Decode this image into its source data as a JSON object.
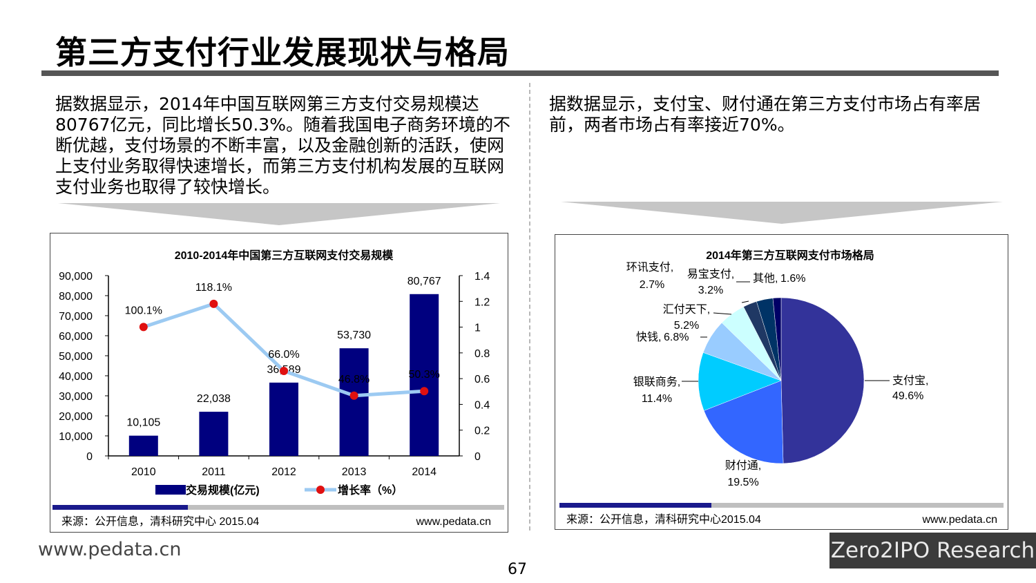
{
  "page": {
    "title": "第三方支付行业发展现状与格局",
    "left_text": "据数据显示，2014年中国互联网第三方支付交易规模达80767亿元，同比增长50.3%。随着我国电子商务环境的不断优越，支付场景的不断丰富，以及金融创新的活跃，使网上支付业务取得快速增长，而第三方支付机构发展的互联网支付业务也取得了较快增长。",
    "right_text": "据数据显示，支付宝、财付通在第三方支付市场占有率居前，两者市场占有率接近70%。",
    "site_url": "www.pedata.cn",
    "page_number": "67",
    "brand": "Zero2IPO Research"
  },
  "chart_data": [
    {
      "type": "bar",
      "title": "2010-2014年中国第三方互联网支付交易规模",
      "categories": [
        "2010",
        "2011",
        "2012",
        "2013",
        "2014"
      ],
      "series": [
        {
          "name": "交易规模(亿元)",
          "type": "bar",
          "axis": "left",
          "values": [
            10105,
            22038,
            36589,
            53730,
            80767
          ],
          "labels": [
            "10,105",
            "22,038",
            "36,589",
            "53,730",
            "80,767"
          ],
          "color": "#00007f"
        },
        {
          "name": "增长率（%）",
          "type": "line",
          "axis": "right",
          "values": [
            1.001,
            1.181,
            0.66,
            0.468,
            0.503
          ],
          "labels": [
            "100.1%",
            "118.1%",
            "66.0%",
            "46.8%",
            "50.3%"
          ],
          "color": "#9ccaf2",
          "marker_color": "#e01010"
        }
      ],
      "y_left": {
        "min": 0,
        "max": 90000,
        "ticks": [
          "0",
          "10,000",
          "20,000",
          "30,000",
          "40,000",
          "50,000",
          "60,000",
          "70,000",
          "80,000",
          "90,000"
        ]
      },
      "y_right": {
        "min": 0,
        "max": 1.4,
        "ticks": [
          "0",
          "0.2",
          "0.4",
          "0.6",
          "0.8",
          "1",
          "1.2",
          "1.4"
        ]
      },
      "legend": "bottom",
      "source": "来源：公开信息，清科研究中心 2015.04",
      "url": "www.pedata.cn"
    },
    {
      "type": "pie",
      "title": "2014年第三方互联网支付市场格局",
      "slices": [
        {
          "name": "支付宝",
          "value": 49.6,
          "label": "49.6%",
          "color": "#33339a"
        },
        {
          "name": "财付通",
          "value": 19.5,
          "label": "19.5%",
          "color": "#3366ff"
        },
        {
          "name": "银联商务",
          "value": 11.4,
          "label": "11.4%",
          "color": "#00ccff"
        },
        {
          "name": "快钱",
          "value": 6.8,
          "label": "6.8%",
          "color": "#99ccff"
        },
        {
          "name": "汇付天下",
          "value": 5.2,
          "label": "5.2%",
          "color": "#ccffff"
        },
        {
          "name": "环讯支付",
          "value": 2.7,
          "label": "2.7%",
          "color": "#1f3864"
        },
        {
          "name": "易宝支付",
          "value": 3.2,
          "label": "3.2%",
          "color": "#003366"
        },
        {
          "name": "其他",
          "value": 1.6,
          "label": "1.6%",
          "color": "#000066"
        }
      ],
      "source": "来源：公开信息，清科研究中心2015.04",
      "url": "www.pedata.cn"
    }
  ]
}
